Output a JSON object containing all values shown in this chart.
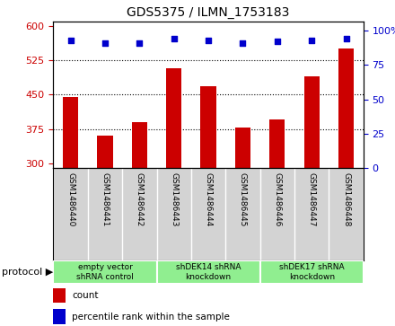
{
  "title": "GDS5375 / ILMN_1753183",
  "samples": [
    "GSM1486440",
    "GSM1486441",
    "GSM1486442",
    "GSM1486443",
    "GSM1486444",
    "GSM1486445",
    "GSM1486446",
    "GSM1486447",
    "GSM1486448"
  ],
  "counts": [
    445,
    360,
    390,
    507,
    468,
    378,
    395,
    490,
    550
  ],
  "percentiles": [
    93,
    91,
    91,
    94,
    93,
    91,
    92,
    93,
    94
  ],
  "ylim_left": [
    290,
    610
  ],
  "yticks_left": [
    300,
    375,
    450,
    525,
    600
  ],
  "ylim_right": [
    0,
    107
  ],
  "yticks_right": [
    0,
    25,
    50,
    75,
    100
  ],
  "bar_color": "#cc0000",
  "dot_color": "#0000cc",
  "bg_color": "#d3d3d3",
  "protocol_bg": "#90ee90",
  "groups": [
    {
      "label": "empty vector\nshRNA control",
      "indices": [
        0,
        1,
        2
      ]
    },
    {
      "label": "shDEK14 shRNA\nknockdown",
      "indices": [
        3,
        4,
        5
      ]
    },
    {
      "label": "shDEK17 shRNA\nknockdown",
      "indices": [
        6,
        7,
        8
      ]
    }
  ]
}
